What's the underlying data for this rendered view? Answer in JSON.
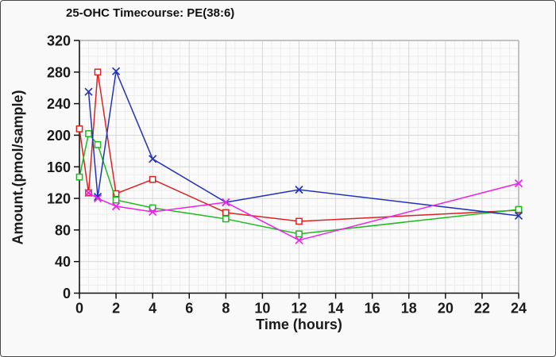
{
  "figure": {
    "background": "#f9f9f9",
    "border_color": "#4a4a4a"
  },
  "chart_style": {
    "axis_color": "#111111",
    "frame_color": "#b0b0b0",
    "major_grid_color": "#d7d7d7",
    "minor_grid_color": "#ededed",
    "tick_label_color": "#1a1a1a"
  },
  "chart_data": {
    "type": "line",
    "title": "25-OHC Timecourse: PE(38:6)",
    "xlabel": "Time (hours)",
    "ylabel": "Amount.(pmol/sample)",
    "xlim": [
      0,
      24
    ],
    "ylim": [
      0,
      320
    ],
    "x_ticks": [
      0,
      2,
      4,
      6,
      8,
      10,
      12,
      14,
      16,
      18,
      20,
      22,
      24
    ],
    "y_ticks": [
      0,
      40,
      80,
      120,
      160,
      200,
      240,
      280,
      320
    ],
    "x_minor_step": 0.5,
    "y_minor_step": 10,
    "grid": true,
    "legend": "none",
    "series": [
      {
        "name": "red-squares",
        "color": "#dd2222",
        "marker": "square",
        "x": [
          0,
          0.5,
          1,
          2,
          4,
          8,
          12,
          24
        ],
        "y": [
          208,
          127,
          280,
          126,
          144,
          102,
          91,
          105
        ]
      },
      {
        "name": "green-squares",
        "color": "#1dbb1d",
        "marker": "square",
        "x": [
          0,
          0.5,
          1,
          2,
          4,
          8,
          12,
          24
        ],
        "y": [
          147,
          202,
          188,
          118,
          108,
          94,
          75,
          106
        ]
      },
      {
        "name": "blue-crosses",
        "color": "#2233bb",
        "marker": "x",
        "x": [
          0.5,
          1,
          2,
          4,
          8,
          12,
          24
        ],
        "y": [
          255,
          122,
          281,
          170,
          115,
          131,
          98
        ]
      },
      {
        "name": "magenta-crosses",
        "color": "#ee22ee",
        "marker": "x",
        "x": [
          0.5,
          1,
          2,
          4,
          8,
          12,
          24
        ],
        "y": [
          127,
          120,
          110,
          103,
          115,
          67,
          139
        ]
      }
    ]
  }
}
